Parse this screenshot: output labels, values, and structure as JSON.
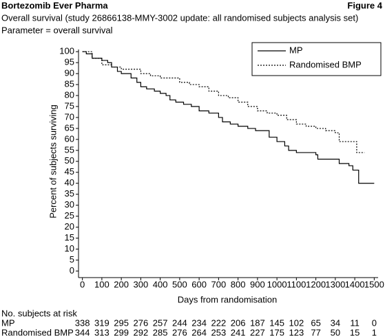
{
  "chart_data": {
    "type": "line",
    "title": "Bortezomib Ever Pharma",
    "figure_label": "Figure 4",
    "subtitle": "Overall survival (study 26866138-MMY-3002 update: all randomised subjects analysis set)",
    "parameter": "Parameter = overall survival",
    "x_label": "Days from randomisation",
    "y_label": "Percent of subjects surviving",
    "xlim": [
      -20,
      1520
    ],
    "xticks": [
      0,
      100,
      200,
      300,
      400,
      500,
      600,
      700,
      800,
      900,
      1000,
      1100,
      1200,
      1300,
      1400,
      1500
    ],
    "ylim": [
      -3,
      101
    ],
    "yticks": [
      0,
      5,
      10,
      15,
      20,
      25,
      30,
      35,
      40,
      45,
      50,
      55,
      60,
      65,
      70,
      75,
      80,
      85,
      90,
      95,
      100
    ],
    "legend": "upper right",
    "series": [
      {
        "name": "MP",
        "color": "#000000",
        "dash": "solid",
        "x": [
          0,
          20,
          20,
          50,
          50,
          100,
          100,
          130,
          130,
          150,
          150,
          180,
          180,
          200,
          200,
          250,
          250,
          280,
          280,
          300,
          300,
          330,
          330,
          370,
          370,
          400,
          400,
          430,
          430,
          450,
          450,
          480,
          480,
          520,
          520,
          560,
          560,
          600,
          600,
          650,
          650,
          700,
          700,
          720,
          720,
          760,
          760,
          800,
          800,
          850,
          850,
          890,
          890,
          960,
          960,
          1000,
          1000,
          1040,
          1040,
          1060,
          1060,
          1100,
          1100,
          1200,
          1200,
          1210,
          1210,
          1320,
          1320,
          1370,
          1370,
          1390,
          1390,
          1420,
          1420,
          1500
        ],
        "values": [
          100,
          100,
          99,
          99,
          97,
          97,
          96,
          96,
          95,
          95,
          93,
          93,
          91,
          91,
          90,
          90,
          88,
          88,
          86,
          86,
          84,
          84,
          83,
          83,
          82,
          82,
          81,
          81,
          80,
          80,
          78,
          78,
          77,
          77,
          76,
          76,
          75,
          75,
          73,
          73,
          72,
          72,
          70,
          70,
          68,
          68,
          67,
          67,
          66,
          66,
          65,
          65,
          64,
          64,
          61,
          61,
          59,
          59,
          57,
          57,
          55,
          55,
          54,
          54,
          53,
          53,
          51,
          51,
          49,
          49,
          48,
          48,
          46,
          46,
          40,
          40
        ]
      },
      {
        "name": "Randomised BMP",
        "color": "#000000",
        "dash": "dotted",
        "x": [
          0,
          50,
          50,
          100,
          100,
          150,
          150,
          200,
          200,
          300,
          300,
          350,
          350,
          400,
          400,
          500,
          500,
          550,
          550,
          600,
          600,
          650,
          650,
          700,
          700,
          750,
          750,
          800,
          800,
          850,
          850,
          900,
          900,
          950,
          950,
          1000,
          1000,
          1050,
          1050,
          1100,
          1100,
          1150,
          1150,
          1200,
          1200,
          1250,
          1250,
          1300,
          1300,
          1320,
          1320,
          1410,
          1410,
          1450
        ],
        "values": [
          100,
          100,
          97,
          97,
          94,
          94,
          93,
          93,
          92,
          92,
          90,
          90,
          89,
          89,
          88,
          88,
          86,
          86,
          85,
          85,
          84,
          84,
          82,
          82,
          80,
          80,
          79,
          79,
          77,
          77,
          75,
          75,
          73,
          73,
          72,
          72,
          71,
          71,
          69,
          69,
          67,
          67,
          66,
          66,
          65,
          65,
          64,
          64,
          63,
          63,
          59,
          59,
          54,
          54
        ]
      }
    ],
    "risk_table": {
      "title": "No. subjects at risk",
      "rows": [
        {
          "name": "MP",
          "values": [
            338,
            319,
            295,
            276,
            257,
            244,
            234,
            222,
            206,
            187,
            145,
            102,
            65,
            34,
            11,
            0
          ]
        },
        {
          "name": "Randomised BMP",
          "values": [
            344,
            313,
            299,
            292,
            285,
            276,
            264,
            253,
            241,
            227,
            175,
            123,
            77,
            50,
            15,
            1
          ]
        }
      ]
    }
  }
}
